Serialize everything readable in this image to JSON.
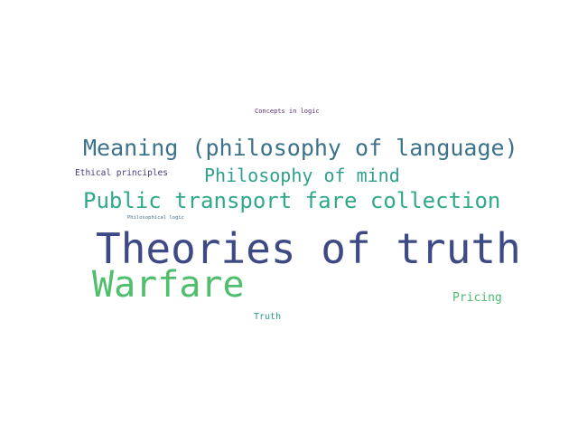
{
  "words": [
    {
      "text": "Concepts in logic",
      "color": "#5b2f7a"
    },
    {
      "text": "Meaning (philosophy of language)",
      "color": "#3c738a"
    },
    {
      "text": "Ethical principles",
      "color": "#453a7c"
    },
    {
      "text": "Philosophy of mind",
      "color": "#2ea08c"
    },
    {
      "text": "Public transport fare collection",
      "color": "#30a88a"
    },
    {
      "text": "Philosophical logic",
      "color": "#3d6b8c"
    },
    {
      "text": "Theories of truth",
      "color": "#3d4a85"
    },
    {
      "text": "Warfare",
      "color": "#4fbe6d"
    },
    {
      "text": "Pricing",
      "color": "#4cbc6f"
    },
    {
      "text": "Truth",
      "color": "#2f9c8a"
    }
  ]
}
